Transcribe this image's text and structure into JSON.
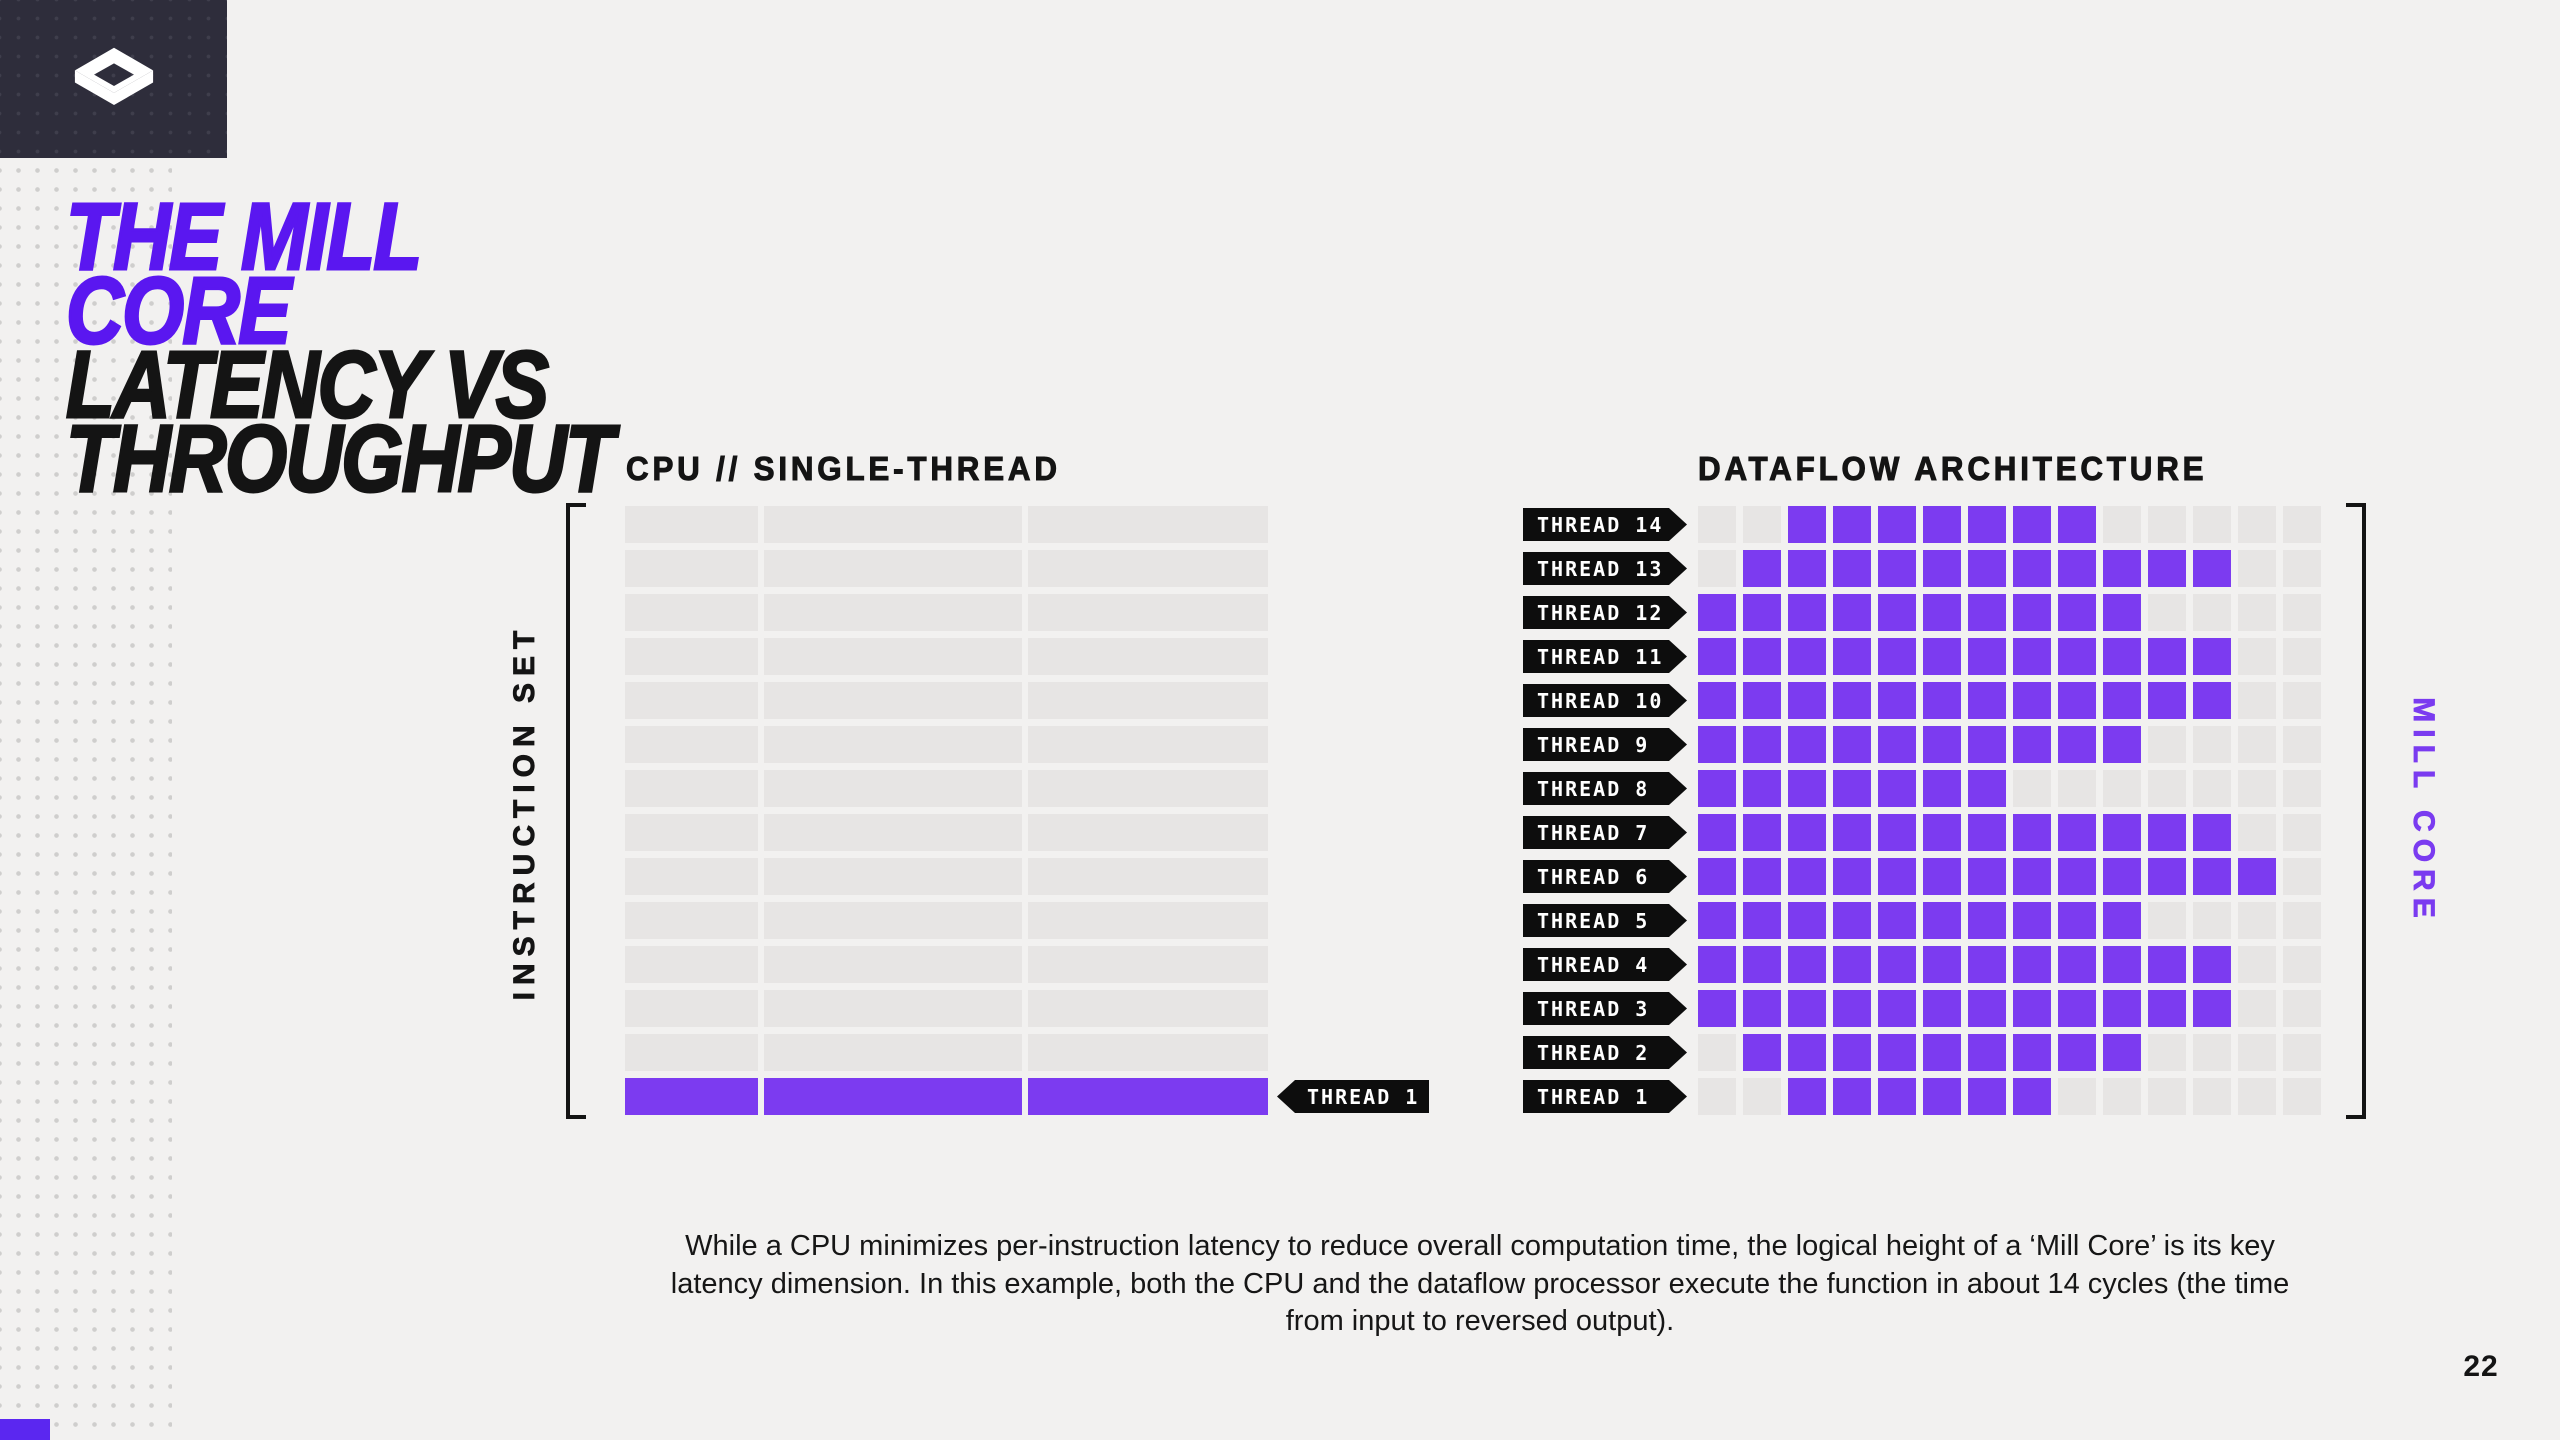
{
  "page": {
    "number": "22"
  },
  "colors": {
    "background": "#f2f1f0",
    "dark_box": "#2e2d3b",
    "title_purple": "#5a17f0",
    "cell_purple": "#7c3bf0",
    "cell_gray": "#e7e5e4",
    "tag_black": "#0d0d0d",
    "text_black": "#141414",
    "mill_core_label_purple": "#7a3bf0",
    "corner_accent": "#5b27f0"
  },
  "logo": {
    "icon": "mill-isometric-box-logo"
  },
  "title": {
    "lines": [
      {
        "text": "THE MILL"
      },
      {
        "text": "CORE"
      },
      {
        "text": "LATENCY VS"
      },
      {
        "text": "THROUGHPUT"
      }
    ]
  },
  "cpu_chart": {
    "title": "CPU // SINGLE-THREAD",
    "axis_label": "INSTRUCTION SET",
    "rows": 14,
    "segments_per_row": 3,
    "active_row": 14,
    "active_row_label": "THREAD 1"
  },
  "dataflow_chart": {
    "title": "DATAFLOW ARCHITECTURE",
    "axis_label": "MILL CORE",
    "columns": 14,
    "threads": [
      {
        "label": "THREAD 14",
        "start": 3,
        "end": 9
      },
      {
        "label": "THREAD 13",
        "start": 2,
        "end": 12
      },
      {
        "label": "THREAD 12",
        "start": 1,
        "end": 10
      },
      {
        "label": "THREAD 11",
        "start": 1,
        "end": 12
      },
      {
        "label": "THREAD 10",
        "start": 1,
        "end": 12
      },
      {
        "label": "THREAD 9",
        "start": 1,
        "end": 10
      },
      {
        "label": "THREAD 8",
        "start": 1,
        "end": 7
      },
      {
        "label": "THREAD 7",
        "start": 1,
        "end": 12
      },
      {
        "label": "THREAD 6",
        "start": 1,
        "end": 13
      },
      {
        "label": "THREAD 5",
        "start": 1,
        "end": 10
      },
      {
        "label": "THREAD 4",
        "start": 1,
        "end": 12
      },
      {
        "label": "THREAD 3",
        "start": 1,
        "end": 12
      },
      {
        "label": "THREAD 2",
        "start": 2,
        "end": 10
      },
      {
        "label": "THREAD 1",
        "start": 3,
        "end": 8
      }
    ]
  },
  "caption": {
    "lines": [
      "While a CPU minimizes per-instruction latency to reduce overall computation time, the logical height of a ‘Mill Core’  is its key",
      "latency dimension. In this example, both the CPU and the dataflow processor execute the function in about 14 cycles (the time",
      "from input to reversed output)."
    ]
  },
  "chart_data": [
    {
      "type": "heatmap",
      "title": "CPU // SINGLE-THREAD",
      "ylabel": "INSTRUCTION SET",
      "rows": 14,
      "columns": 3,
      "note": "13 empty gray rows; only bottom row (THREAD 1) is filled purple across all 3 instruction segments",
      "active_rows": {
        "THREAD 1": [
          1,
          3
        ]
      }
    },
    {
      "type": "heatmap",
      "title": "DATAFLOW ARCHITECTURE",
      "ylabel": "MILL CORE",
      "rows": 14,
      "columns": 14,
      "note": "active (purple) cycle-columns per thread, inclusive ranges",
      "series": [
        {
          "name": "THREAD 14",
          "active_cols": [
            3,
            9
          ]
        },
        {
          "name": "THREAD 13",
          "active_cols": [
            2,
            12
          ]
        },
        {
          "name": "THREAD 12",
          "active_cols": [
            1,
            10
          ]
        },
        {
          "name": "THREAD 11",
          "active_cols": [
            1,
            12
          ]
        },
        {
          "name": "THREAD 10",
          "active_cols": [
            1,
            12
          ]
        },
        {
          "name": "THREAD 9",
          "active_cols": [
            1,
            10
          ]
        },
        {
          "name": "THREAD 8",
          "active_cols": [
            1,
            7
          ]
        },
        {
          "name": "THREAD 7",
          "active_cols": [
            1,
            12
          ]
        },
        {
          "name": "THREAD 6",
          "active_cols": [
            1,
            13
          ]
        },
        {
          "name": "THREAD 5",
          "active_cols": [
            1,
            10
          ]
        },
        {
          "name": "THREAD 4",
          "active_cols": [
            1,
            12
          ]
        },
        {
          "name": "THREAD 3",
          "active_cols": [
            1,
            12
          ]
        },
        {
          "name": "THREAD 2",
          "active_cols": [
            2,
            10
          ]
        },
        {
          "name": "THREAD 1",
          "active_cols": [
            3,
            8
          ]
        }
      ]
    }
  ]
}
